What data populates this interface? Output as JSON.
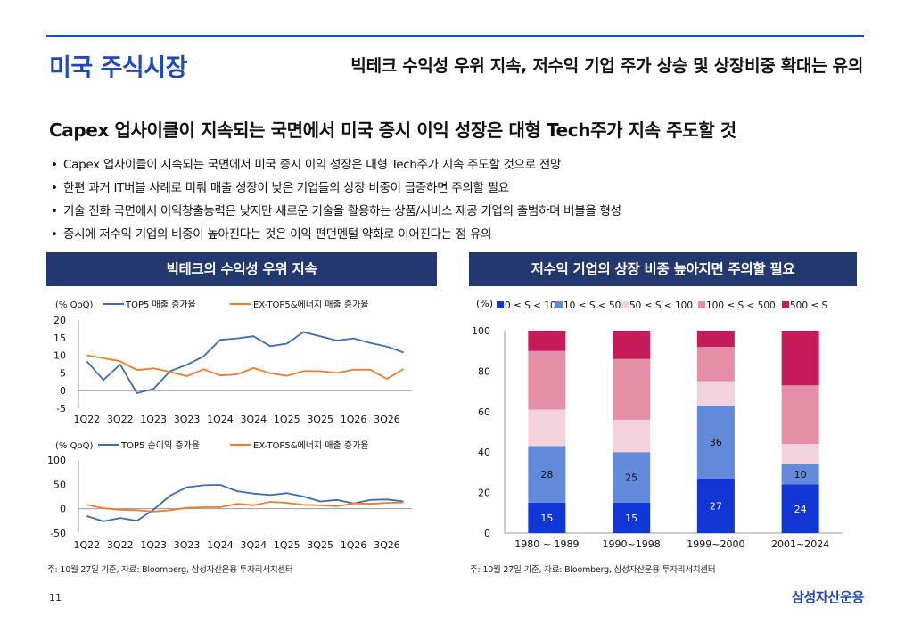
{
  "header": {
    "title": "미국 주식시장",
    "subtitle": "빅테크 수익성 우위 지속, 저수익 기업 주가 상승 및 상장비중 확대는 유의"
  },
  "headline": "Capex 업사이클이 지속되는 국면에서 미국 증시 이익 성장은 대형 Tech주가 지속 주도할 것",
  "bullets": [
    "Capex 업사이클이 지속되는 국면에서 미국 증시 이익 성장은 대형 Tech주가 지속 주도할 것으로 전망",
    "한편 과거 IT버블 사례로 미뤄 매출 성장이 낮은 기업들의 상장 비중이 급증하면 주의할 필요",
    "기술 진화 국면에서 이익창출능력은 낮지만 새로운 기술을 활용하는 상품/서비스 제공 기업의 출범하며 버블을 형성",
    "증시에 저수익 기업의 비중이 높아진다는 것은 이익 편던멘털 약화로 이어진다는 점 유의"
  ],
  "panels": {
    "left_title": "빅테크의 수익성 우위 지속",
    "right_title": "저수익 기업의 상장 비중 높아지면 주의할 필요",
    "left_source": "주: 10월 27일 기준, 자료: Bloomberg, 삼성자산운용 투자리서치센터",
    "right_source": "주: 10월 27일 기준, 자료: Bloomberg, 삼성자산운용 투자리서치센터"
  },
  "chart_data": [
    {
      "type": "line",
      "unit_label": "(% QoQ)",
      "x": [
        "1Q22",
        "2Q22",
        "3Q22",
        "4Q22",
        "1Q23",
        "2Q23",
        "3Q23",
        "4Q23",
        "1Q24",
        "2Q24",
        "3Q24",
        "4Q24",
        "1Q25",
        "2Q25",
        "3Q25",
        "4Q25",
        "1Q26",
        "2Q26",
        "3Q26",
        "4Q26"
      ],
      "tick_labels": [
        "1Q22",
        "3Q22",
        "1Q23",
        "3Q23",
        "1Q24",
        "3Q24",
        "1Q25",
        "3Q25",
        "1Q26",
        "3Q26"
      ],
      "ylim": [
        -5,
        20
      ],
      "yticks": [
        "20",
        "15",
        "10",
        "5",
        "0",
        "-5"
      ],
      "series": [
        {
          "name": "TOP5 매출 증가율",
          "color": "#3b6cb5",
          "values": [
            8.3,
            3.0,
            7.4,
            -0.7,
            0.5,
            5.5,
            7.3,
            9.7,
            14.4,
            14.8,
            15.4,
            12.6,
            13.3,
            16.6,
            15.4,
            14.2,
            14.8,
            13.5,
            12.5,
            10.8
          ]
        },
        {
          "name": "EX-TOP5&에너지 매출 증가율",
          "color": "#ee7d31",
          "values": [
            10.0,
            9.2,
            8.3,
            5.8,
            6.3,
            5.3,
            4.1,
            6.0,
            4.3,
            4.6,
            6.4,
            4.9,
            4.2,
            5.5,
            5.5,
            5.0,
            5.9,
            5.9,
            3.3,
            6.1
          ]
        }
      ]
    },
    {
      "type": "line",
      "unit_label": "(% QoQ)",
      "x": [
        "1Q22",
        "2Q22",
        "3Q22",
        "4Q22",
        "1Q23",
        "2Q23",
        "3Q23",
        "4Q23",
        "1Q24",
        "2Q24",
        "3Q24",
        "4Q24",
        "1Q25",
        "2Q25",
        "3Q25",
        "4Q25",
        "1Q26",
        "2Q26",
        "3Q26",
        "4Q26"
      ],
      "tick_labels": [
        "1Q22",
        "3Q22",
        "1Q23",
        "3Q23",
        "1Q24",
        "3Q24",
        "1Q25",
        "3Q25",
        "1Q26",
        "3Q26"
      ],
      "ylim": [
        -50,
        100
      ],
      "yticks": [
        "100",
        "50",
        "0",
        "-50"
      ],
      "series": [
        {
          "name": "TOP5 순이익 증가율",
          "color": "#3b6cb5",
          "values": [
            -15,
            -26,
            -19,
            -25,
            -2,
            27,
            44,
            48,
            49,
            36,
            31,
            28,
            32,
            25,
            15,
            18,
            11,
            18,
            19,
            15
          ]
        },
        {
          "name": "EX-TOP5&에너지 매출 증가율",
          "color": "#ee7d31",
          "values": [
            8,
            1,
            -2,
            -3,
            -6,
            -3,
            2,
            3,
            3,
            10,
            7,
            14,
            12,
            8,
            7,
            5,
            11,
            10,
            12,
            13
          ]
        }
      ]
    },
    {
      "type": "bar",
      "stacked": true,
      "unit_label": "(%)",
      "categories": [
        "1980 ~ 1989",
        "1990~1998",
        "1999~2000",
        "2001~2024"
      ],
      "ylim": [
        0,
        100
      ],
      "yticks": [
        "100",
        "80",
        "60",
        "40",
        "20",
        "0"
      ],
      "series": [
        {
          "name": "0 ≤ S < 10",
          "color": "#1036d6",
          "values": [
            15,
            15,
            27,
            24
          ],
          "labels": [
            "15",
            "15",
            "27",
            "24"
          ]
        },
        {
          "name": "10 ≤ S < 50",
          "color": "#6389da",
          "values": [
            28,
            25,
            36,
            10
          ],
          "labels": [
            "28",
            "25",
            "36",
            "10"
          ]
        },
        {
          "name": "50 ≤ S < 100",
          "color": "#f3d2dc",
          "values": [
            18,
            16,
            12,
            10
          ],
          "labels": [
            "",
            "",
            "",
            ""
          ]
        },
        {
          "name": "100 ≤ S < 500",
          "color": "#e48fa5",
          "values": [
            29,
            30,
            17,
            29
          ],
          "labels": [
            "",
            "",
            "",
            ""
          ]
        },
        {
          "name": "500 ≤ S",
          "color": "#c51b5b",
          "values": [
            10,
            14,
            8,
            27
          ],
          "labels": [
            "",
            "",
            "",
            ""
          ]
        }
      ]
    }
  ],
  "footer": {
    "page_number": "11",
    "brand": "삼성자산운용"
  }
}
